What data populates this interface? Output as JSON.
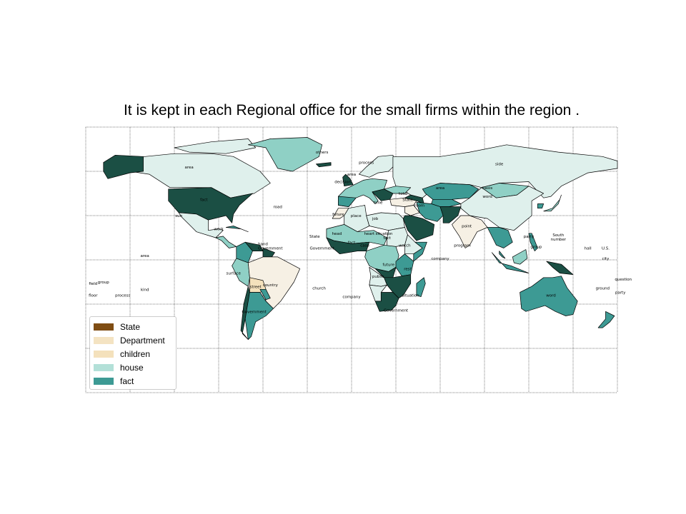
{
  "title": "It is kept in each Regional office for the small firms within the region .",
  "legend": [
    {
      "label": "State",
      "color": "#7f4d13"
    },
    {
      "label": "Department",
      "color": "#f4e3c2"
    },
    {
      "label": "children",
      "color": "#f4e1bc"
    },
    {
      "label": "house",
      "color": "#b3e0d8"
    },
    {
      "label": "fact",
      "color": "#3d9a94"
    }
  ],
  "colors": {
    "dark": "#1b4f44",
    "fact": "#3d9a94",
    "teal_light": "#8fd0c5",
    "pale": "#dff0ec",
    "cream": "#f6f0e4",
    "tan": "#f4e1bc",
    "ocean": "#ffffff"
  },
  "place_labels": [
    {
      "text": "others",
      "lon": -20,
      "lat": 72
    },
    {
      "text": "process",
      "lon": 10,
      "lat": 65
    },
    {
      "text": "side",
      "lon": 100,
      "lat": 64
    },
    {
      "text": "area",
      "lon": -110,
      "lat": 62
    },
    {
      "text": "fact",
      "lon": -100,
      "lat": 40
    },
    {
      "text": "basis",
      "lon": 92,
      "lat": 48
    },
    {
      "text": "word",
      "lon": 92,
      "lat": 42
    },
    {
      "text": "area",
      "lon": 60,
      "lat": 48
    },
    {
      "text": "road",
      "lon": -50,
      "lat": 35
    },
    {
      "text": "sun",
      "lon": -117,
      "lat": 29
    },
    {
      "text": "room",
      "lon": 46,
      "lat": 36
    },
    {
      "text": "point",
      "lon": 78,
      "lat": 22
    },
    {
      "text": "South",
      "lon": 140,
      "lat": 16
    },
    {
      "text": "number",
      "lon": 140,
      "lat": 13
    },
    {
      "text": "party",
      "lon": 120,
      "lat": 15
    },
    {
      "text": "group",
      "lon": 125,
      "lat": 8
    },
    {
      "text": "hall",
      "lon": 160,
      "lat": 7
    },
    {
      "text": "U.S.",
      "lon": 172,
      "lat": 7
    },
    {
      "text": "city",
      "lon": 172,
      "lat": 0
    },
    {
      "text": "area",
      "lon": -140,
      "lat": 2
    },
    {
      "text": "company",
      "lon": 60,
      "lat": 0
    },
    {
      "text": "rest",
      "lon": 38,
      "lat": -7
    },
    {
      "text": "program",
      "lon": 75,
      "lat": 9
    },
    {
      "text": "question",
      "lon": 184,
      "lat": -14
    },
    {
      "text": "ground",
      "lon": 170,
      "lat": -20
    },
    {
      "text": "party",
      "lon": 182,
      "lat": -23
    },
    {
      "text": "word",
      "lon": 135,
      "lat": -25
    },
    {
      "text": "country",
      "lon": -55,
      "lat": -18
    },
    {
      "text": "church",
      "lon": -22,
      "lat": -20
    },
    {
      "text": "company",
      "lon": 0,
      "lat": -26
    },
    {
      "text": "situation",
      "lon": 40,
      "lat": -25
    },
    {
      "text": "field",
      "lon": -175,
      "lat": -17
    },
    {
      "text": "group",
      "lon": -168,
      "lat": -16
    },
    {
      "text": "floor",
      "lon": -175,
      "lat": -25
    },
    {
      "text": "process",
      "lon": -155,
      "lat": -25
    },
    {
      "text": "kind",
      "lon": -140,
      "lat": -21
    },
    {
      "text": "surface",
      "lon": -80,
      "lat": -10
    },
    {
      "text": "street",
      "lon": -65,
      "lat": -19
    },
    {
      "text": "Government",
      "lon": -66,
      "lat": -36
    },
    {
      "text": "Government",
      "lon": -55,
      "lat": 7
    },
    {
      "text": "State",
      "lon": -25,
      "lat": 15
    },
    {
      "text": "fact",
      "lon": 0,
      "lat": 11
    },
    {
      "text": "Government",
      "lon": -20,
      "lat": 7
    },
    {
      "text": "head",
      "lon": -10,
      "lat": 17
    },
    {
      "text": "heart",
      "lon": 12,
      "lat": 17
    },
    {
      "text": "situation",
      "lon": 22,
      "lat": 17
    },
    {
      "text": "fact",
      "lon": 24,
      "lat": 14
    },
    {
      "text": "case",
      "lon": 9,
      "lat": 9
    },
    {
      "text": "watch",
      "lon": 36,
      "lat": 9
    },
    {
      "text": "future",
      "lon": 25,
      "lat": -4
    },
    {
      "text": "public",
      "lon": 18,
      "lat": -12
    },
    {
      "text": "Government",
      "lon": 30,
      "lat": -35
    },
    {
      "text": "place",
      "lon": 3,
      "lat": 29
    },
    {
      "text": "future",
      "lon": -9,
      "lat": 30
    },
    {
      "text": "job",
      "lon": 16,
      "lat": 27
    },
    {
      "text": "time",
      "lon": 18,
      "lat": 38
    },
    {
      "text": "State",
      "lon": 38,
      "lat": 40
    },
    {
      "text": "total",
      "lon": 35,
      "lat": 44
    },
    {
      "text": "area",
      "lon": 0,
      "lat": 57
    },
    {
      "text": "decision",
      "lon": -6,
      "lat": 52
    },
    {
      "text": "work",
      "lon": -90,
      "lat": 20
    },
    {
      "text": "hand",
      "lon": -60,
      "lat": 10
    }
  ]
}
